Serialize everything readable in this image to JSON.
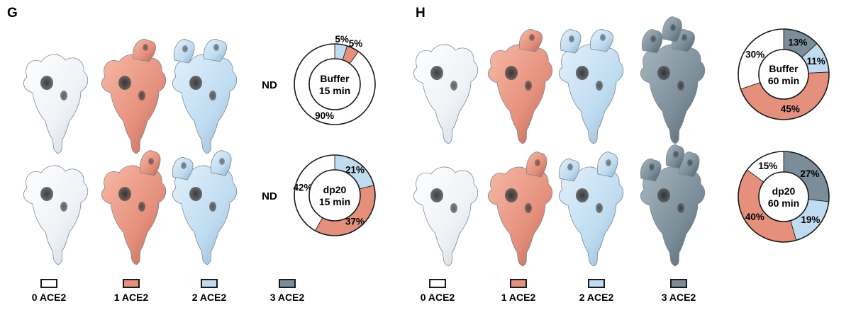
{
  "colors": {
    "0 ACE2": "#ffffff",
    "1 ACE2": "#e5907c",
    "2 ACE2": "#bfdcf1",
    "3 ACE2": "#7a8d98",
    "outline": "#1a1a1a"
  },
  "chart_data": [
    {
      "panel": "G",
      "legend": [
        "0 ACE2",
        "1 ACE2",
        "2 ACE2",
        "3 ACE2"
      ],
      "rows": [
        {
          "side_label": "ND",
          "type": "pie",
          "center_label": [
            "Buffer",
            "15 min"
          ],
          "categories": [
            "0 ACE2",
            "1 ACE2",
            "2 ACE2",
            "3 ACE2"
          ],
          "values": [
            90,
            5,
            5,
            0
          ],
          "labels": [
            "90%",
            "5%",
            "5%",
            ""
          ]
        },
        {
          "side_label": "ND",
          "type": "pie",
          "center_label": [
            "dp20",
            "15 min"
          ],
          "categories": [
            "0 ACE2",
            "1 ACE2",
            "2 ACE2",
            "3 ACE2"
          ],
          "values": [
            42,
            37,
            21,
            0
          ],
          "labels": [
            "42%",
            "37%",
            "21%",
            ""
          ]
        }
      ]
    },
    {
      "panel": "H",
      "legend": [
        "0 ACE2",
        "1 ACE2",
        "2 ACE2",
        "3 ACE2"
      ],
      "rows": [
        {
          "side_label": "",
          "type": "pie",
          "center_label": [
            "Buffer",
            "60 min"
          ],
          "categories": [
            "0 ACE2",
            "1 ACE2",
            "2 ACE2",
            "3 ACE2"
          ],
          "values": [
            30,
            45,
            11,
            13
          ],
          "labels": [
            "30%",
            "45%",
            "11%",
            "13%"
          ]
        },
        {
          "side_label": "",
          "type": "pie",
          "center_label": [
            "dp20",
            "60 min"
          ],
          "categories": [
            "0 ACE2",
            "1 ACE2",
            "2 ACE2",
            "3 ACE2"
          ],
          "values": [
            15,
            40,
            19,
            27
          ],
          "labels": [
            "15%",
            "40%",
            "19%",
            "27%"
          ]
        }
      ]
    }
  ]
}
